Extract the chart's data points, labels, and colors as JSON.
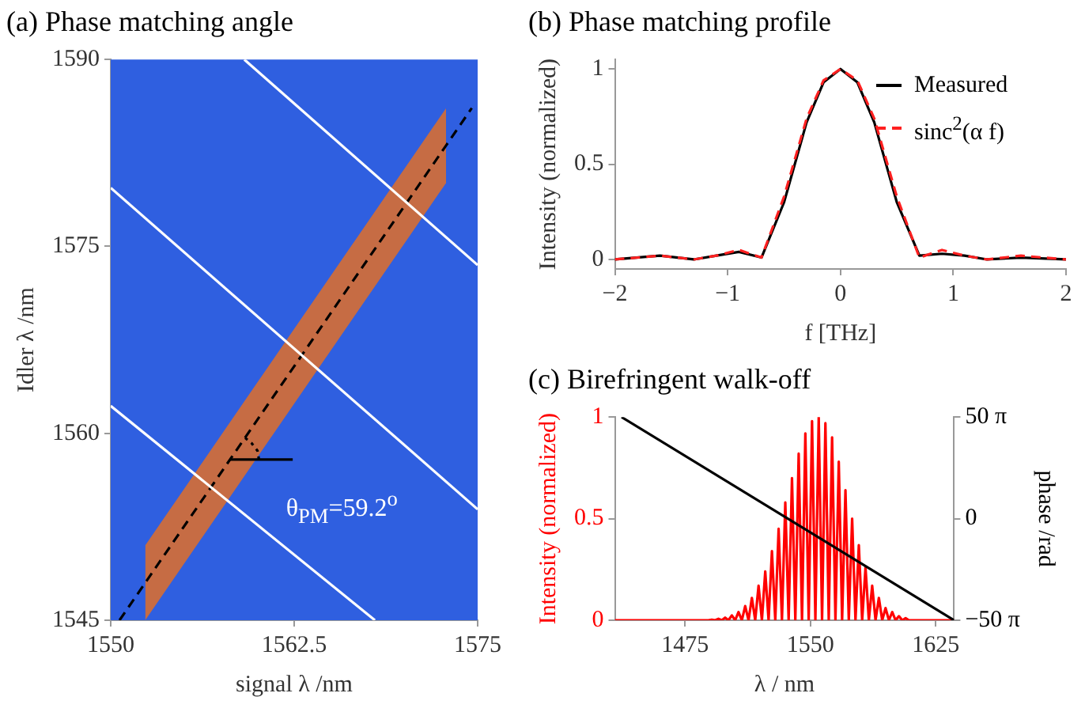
{
  "chart_data": [
    {
      "type": "line",
      "title": "(a) Phase matching angle",
      "xlabel": "signal λ /nm",
      "ylabel": "Idler λ /nm",
      "xlim": [
        1550,
        1575
      ],
      "ylim": [
        1545,
        1590
      ],
      "xticks": [
        1550,
        1562.5,
        1575
      ],
      "yticks": [
        1545,
        1560,
        1575,
        1590
      ],
      "marker": "none",
      "series": [
        {
          "color": "#000000",
          "line_style": "dashed",
          "x": [
            1550.6,
            1552.35,
            1572.85,
            1574.6
          ],
          "values": [
            1545,
            1548,
            1583.1,
            1586.1
          ],
          "lower": [
            null,
            1545,
            1580.1,
            null
          ],
          "upper": [
            null,
            1551,
            1586.1,
            null
          ]
        },
        {
          "color": "#ffffff",
          "x": [
            1559.1,
            1575
          ],
          "values": [
            1590,
            1573.5
          ]
        },
        {
          "color": "#ffffff",
          "x": [
            1550,
            1575
          ],
          "values": [
            1579.7,
            1553.9
          ]
        },
        {
          "color": "#ffffff",
          "x": [
            1550,
            1568
          ],
          "values": [
            1562.2,
            1545
          ]
        },
        {
          "color": "#000000",
          "x": [
            1558.1,
            1562.4
          ],
          "values": [
            1557.9,
            1557.9
          ]
        },
        {
          "color": "#000000",
          "line_style": "dotted",
          "x": [
            1560.1,
            1560.0,
            1559.6,
            1559.1
          ],
          "values": [
            1557.9,
            1558.6,
            1559.2,
            1559.7
          ]
        }
      ],
      "annotations": [
        "θ$_{PM}$=59.2$^{o}$"
      ]
    },
    {
      "type": "line",
      "title": "(b) Phase matching profile",
      "xlabel": "f [THz]",
      "ylabel": "Intensity (normalized)",
      "xlim": [
        -2,
        2
      ],
      "ylim": [
        -0.05,
        1.05
      ],
      "xticks": [
        {
          "value": -2,
          "label": "−2"
        },
        {
          "value": -1,
          "label": "−1"
        },
        0,
        1,
        2
      ],
      "yticks": [
        0,
        0.5,
        1
      ],
      "marker": "none",
      "legend": "top right",
      "x": [
        -2,
        -1.6,
        -1.3,
        -1.1,
        -0.9,
        -0.7,
        -0.5,
        -0.3,
        -0.15,
        0,
        0.15,
        0.3,
        0.5,
        0.7,
        0.9,
        1.1,
        1.3,
        1.6,
        2
      ],
      "series": [
        {
          "name": "Measured",
          "color": "#000000",
          "values": [
            0.0,
            0.02,
            0.0,
            0.02,
            0.04,
            0.01,
            0.3,
            0.72,
            0.93,
            1,
            0.93,
            0.72,
            0.3,
            0.02,
            0.03,
            0.02,
            0.0,
            0.01,
            0.0
          ]
        },
        {
          "name": "sinc$^{2}$(α f)",
          "color": "#ff2020",
          "line_style": "dashed",
          "values": [
            0.0,
            0.02,
            0.0,
            0.02,
            0.05,
            0.01,
            0.33,
            0.74,
            0.94,
            1,
            0.94,
            0.74,
            0.33,
            0.01,
            0.05,
            0.02,
            0.0,
            0.02,
            0.0
          ]
        }
      ]
    },
    {
      "type": "line",
      "title": "(c) Birefringent walk-off",
      "xlabel": "λ / nm",
      "ylabel": "Intensity (normalized)",
      "y2label": "phase /rad",
      "xlim": [
        1433,
        1636
      ],
      "ylim": [
        0,
        1
      ],
      "y2lim": [
        -157,
        157
      ],
      "xticks": [
        1475,
        1550,
        1625
      ],
      "yticks": [
        0,
        0.5,
        1
      ],
      "y2ticks": [
        {
          "value": 157,
          "label": "50 π"
        },
        0,
        {
          "value": -157,
          "label": "−50 π"
        }
      ],
      "marker": "none",
      "series": [
        {
          "color": "#ff0000",
          "x": [
            1433,
            1483,
            1485,
            1487,
            1489,
            1491,
            1493,
            1495,
            1497,
            1499,
            1501,
            1503,
            1505,
            1507,
            1509,
            1511,
            1513,
            1515,
            1517,
            1519,
            1521,
            1523,
            1525,
            1527,
            1529,
            1531,
            1533,
            1535,
            1537,
            1539,
            1541,
            1543,
            1545,
            1547,
            1549,
            1551,
            1553,
            1555,
            1557,
            1559,
            1561,
            1563,
            1565,
            1567,
            1569,
            1571,
            1573,
            1575,
            1577,
            1579,
            1581,
            1583,
            1585,
            1587,
            1589,
            1591,
            1593,
            1595,
            1597,
            1599,
            1601,
            1603,
            1605,
            1607,
            1609,
            1611,
            1636
          ],
          "values": [
            0,
            0,
            0,
            0,
            0,
            0.003,
            0,
            0.007,
            0,
            0.013,
            0,
            0.024,
            0,
            0.04,
            0,
            0.07,
            0,
            0.11,
            0,
            0.17,
            0,
            0.24,
            0,
            0.34,
            0,
            0.45,
            0,
            0.58,
            0,
            0.7,
            0,
            0.82,
            0,
            0.92,
            0,
            0.98,
            0,
            1,
            0,
            0.97,
            0,
            0.9,
            0,
            0.78,
            0,
            0.64,
            0,
            0.5,
            0,
            0.37,
            0,
            0.26,
            0,
            0.17,
            0,
            0.11,
            0,
            0.06,
            0,
            0.04,
            0,
            0.02,
            0,
            0.01,
            0,
            0,
            0
          ]
        },
        {
          "color": "#000000",
          "axis": "y2",
          "x": [
            1437,
            1636
          ],
          "values": [
            157,
            -157
          ]
        }
      ]
    }
  ]
}
